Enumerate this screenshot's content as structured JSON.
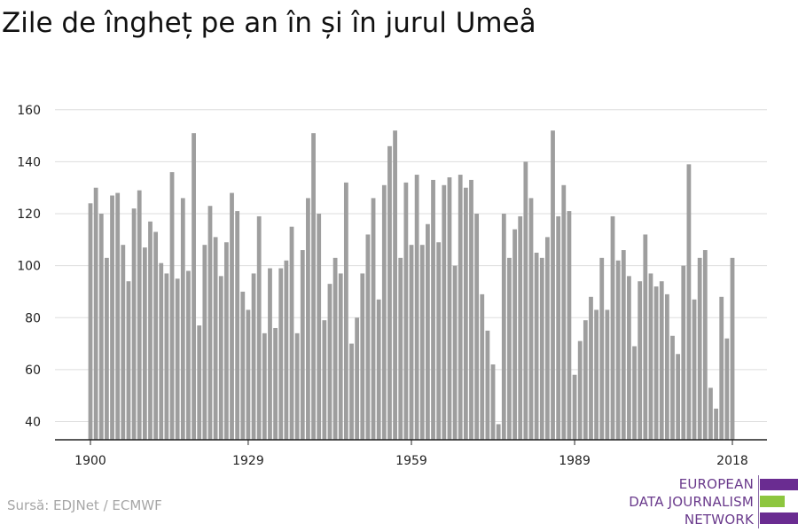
{
  "title": "Zile de îngheț pe an în și în jurul Umeå",
  "source": "Sursă: EDJNet / ECMWF",
  "logo": {
    "line1": "EUROPEAN",
    "line2": "DATA JOURNALISM",
    "line3": "NETWORK",
    "purple": "#6a2c91",
    "green": "#8dc63f"
  },
  "colors": {
    "bar": "#9e9e9e",
    "grid": "#dddddd",
    "axis": "#222222",
    "text": "#222222"
  },
  "chart_data": {
    "type": "bar",
    "x": [
      1900,
      1901,
      1902,
      1903,
      1904,
      1905,
      1906,
      1907,
      1908,
      1909,
      1910,
      1911,
      1912,
      1913,
      1914,
      1915,
      1916,
      1917,
      1918,
      1919,
      1920,
      1921,
      1922,
      1923,
      1924,
      1925,
      1926,
      1927,
      1928,
      1929,
      1930,
      1931,
      1932,
      1933,
      1934,
      1935,
      1936,
      1937,
      1938,
      1939,
      1940,
      1941,
      1942,
      1943,
      1944,
      1945,
      1946,
      1947,
      1948,
      1949,
      1950,
      1951,
      1952,
      1953,
      1954,
      1955,
      1956,
      1957,
      1958,
      1959,
      1960,
      1961,
      1962,
      1963,
      1964,
      1965,
      1966,
      1967,
      1968,
      1969,
      1970,
      1971,
      1972,
      1973,
      1974,
      1975,
      1976,
      1977,
      1978,
      1979,
      1980,
      1981,
      1982,
      1983,
      1984,
      1985,
      1986,
      1987,
      1988,
      1989,
      1990,
      1991,
      1992,
      1993,
      1994,
      1995,
      1996,
      1997,
      1998,
      1999,
      2000,
      2001,
      2002,
      2003,
      2004,
      2005,
      2006,
      2007,
      2008,
      2009,
      2010,
      2011,
      2012,
      2013,
      2014,
      2015,
      2016,
      2017,
      2018
    ],
    "values": [
      124,
      130,
      120,
      103,
      127,
      128,
      108,
      94,
      122,
      129,
      107,
      117,
      113,
      101,
      97,
      136,
      95,
      126,
      98,
      151,
      77,
      108,
      123,
      111,
      96,
      109,
      128,
      121,
      90,
      83,
      97,
      119,
      74,
      99,
      76,
      99,
      102,
      115,
      74,
      106,
      126,
      151,
      120,
      79,
      93,
      103,
      97,
      132,
      70,
      80,
      97,
      112,
      126,
      87,
      131,
      146,
      152,
      103,
      132,
      108,
      135,
      108,
      116,
      133,
      109,
      131,
      134,
      100,
      135,
      130,
      133,
      120,
      89,
      75,
      62,
      39,
      120,
      103,
      114,
      119,
      140,
      126,
      105,
      103,
      111,
      152,
      119,
      131,
      121,
      58,
      71,
      79,
      88,
      83,
      103,
      83,
      119,
      102,
      106,
      96,
      69,
      94,
      112,
      97,
      92,
      94,
      89,
      73,
      66,
      100,
      139,
      87,
      103,
      106,
      53,
      45,
      88,
      72,
      103
    ],
    "xticks": [
      "1900",
      "1929",
      "1959",
      "1989",
      "2018"
    ],
    "yticks": [
      40,
      60,
      80,
      100,
      120,
      140,
      160
    ],
    "ylim": [
      33,
      163
    ],
    "xlabel": "",
    "ylabel": "",
    "grid": true
  }
}
